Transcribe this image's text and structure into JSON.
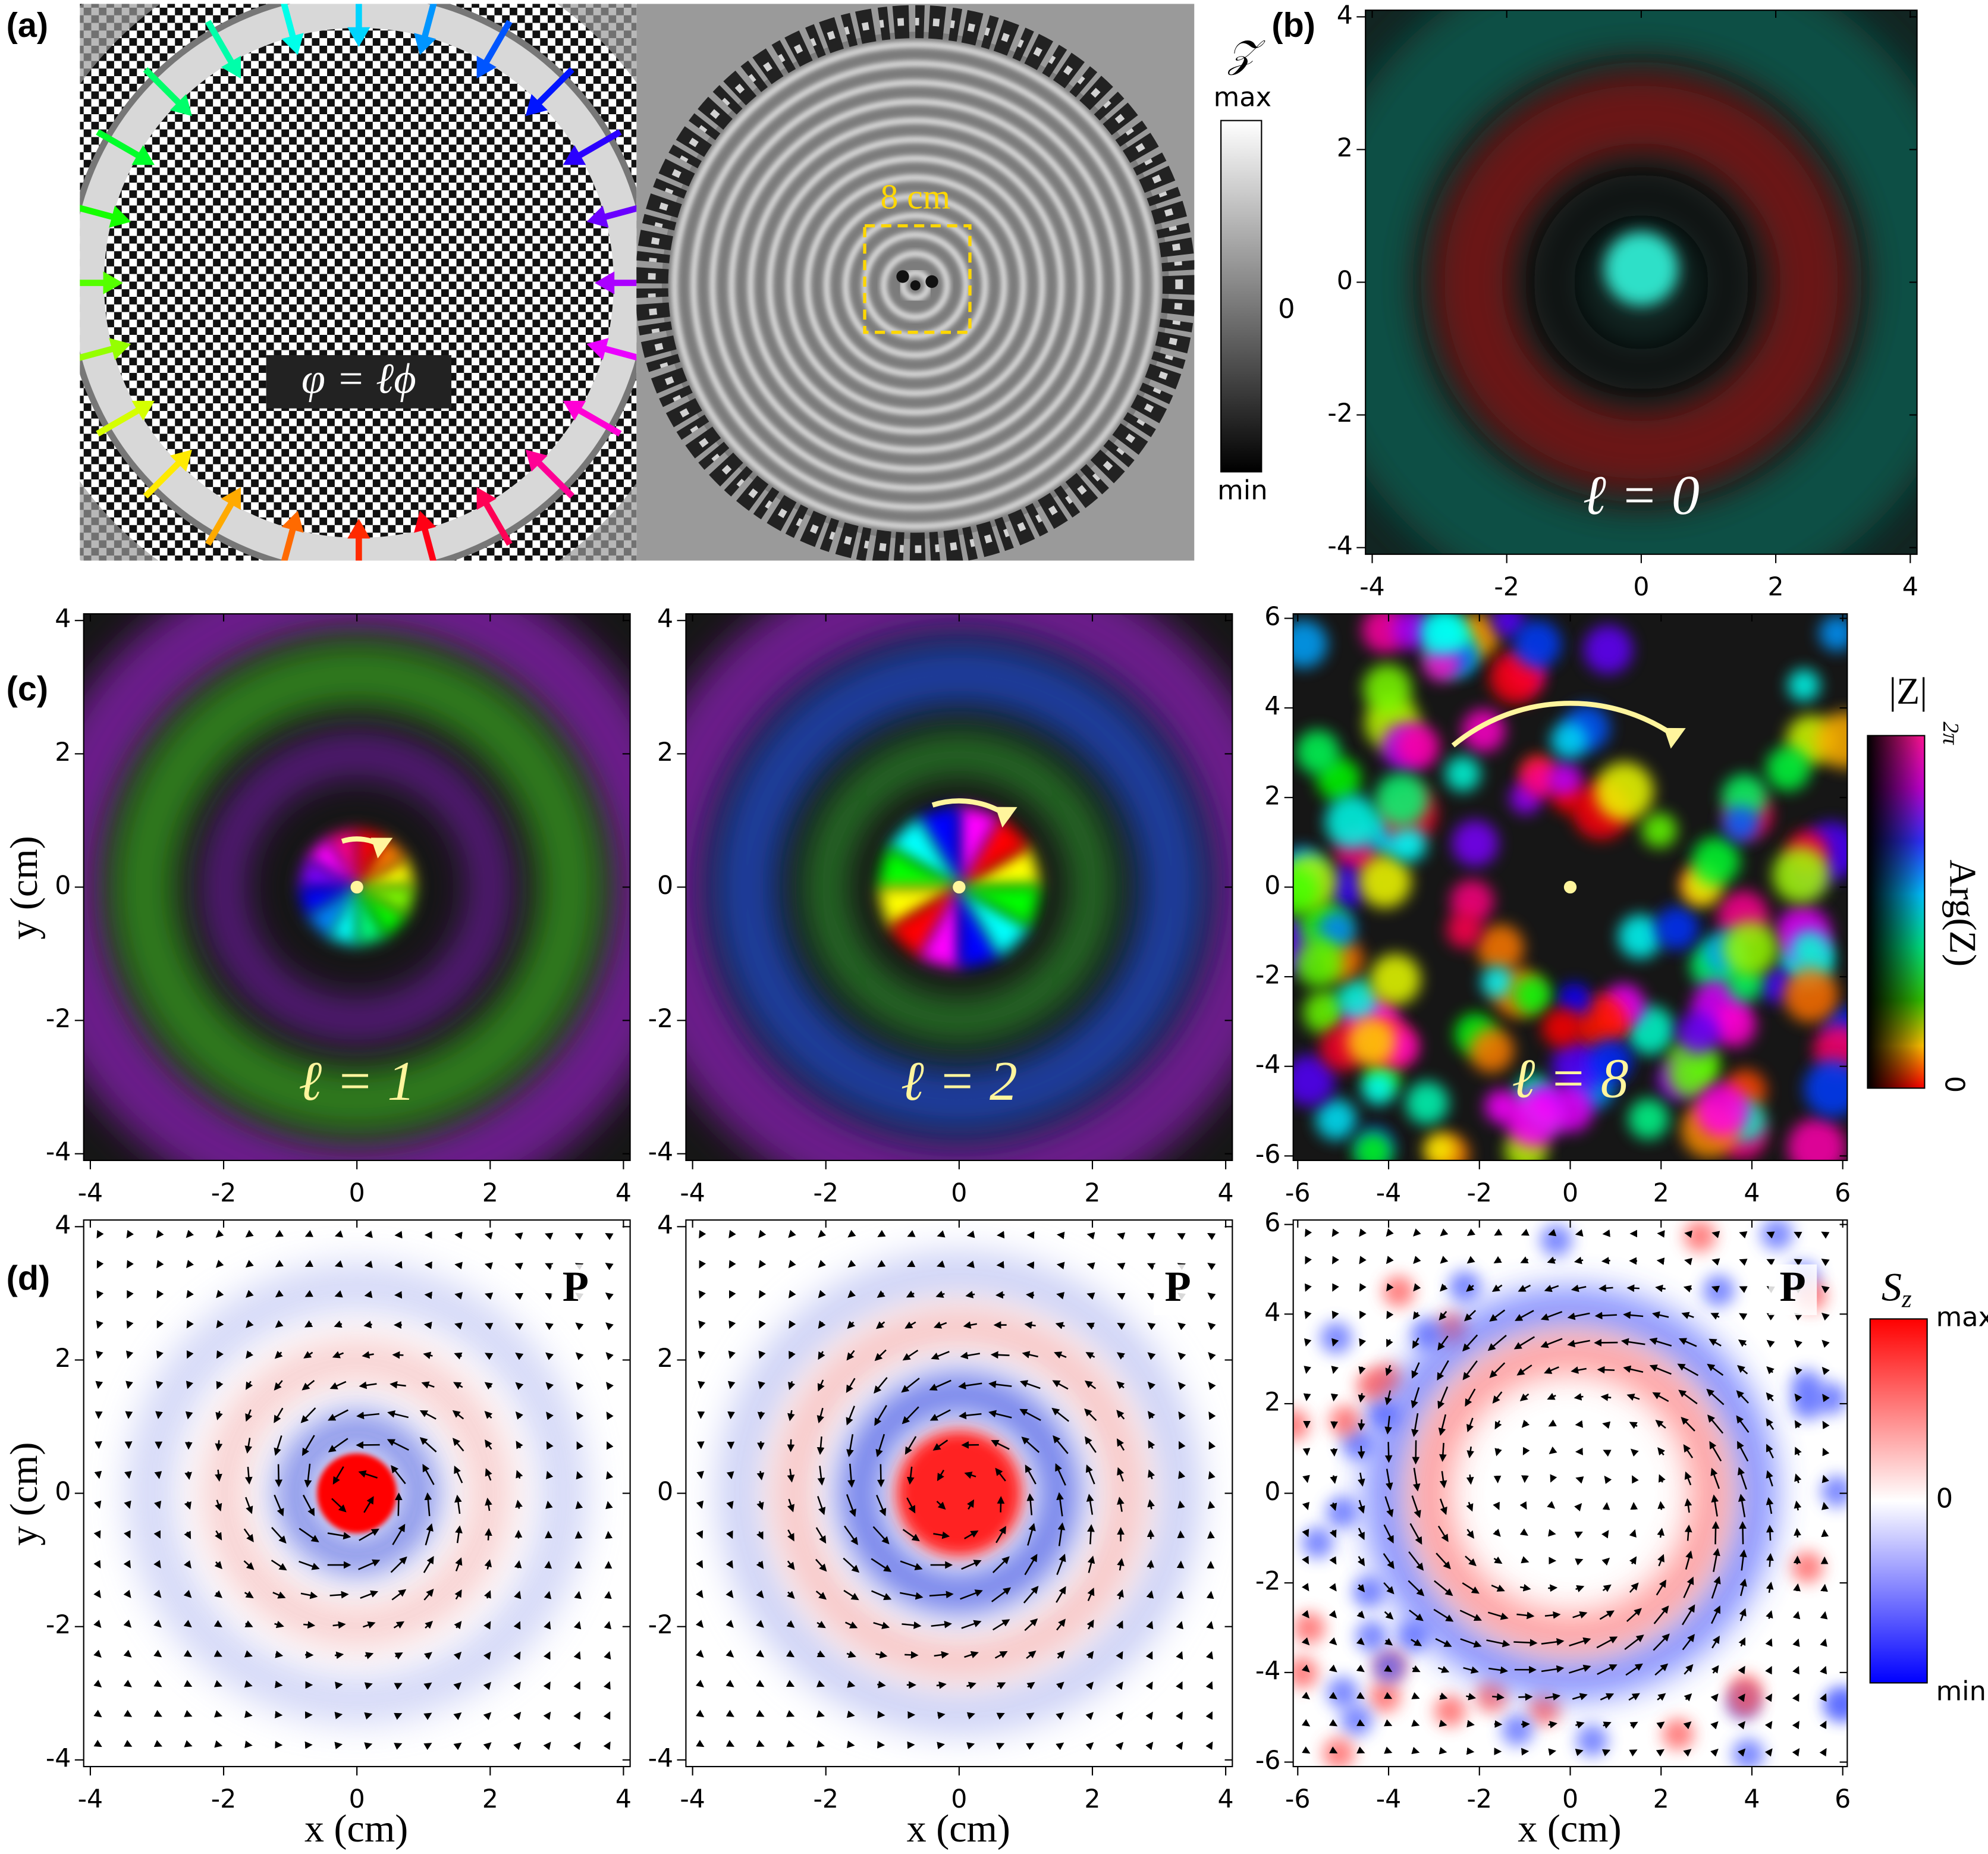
{
  "panels": {
    "a": {
      "label": "(a)",
      "formula": "φ = ℓϕ",
      "scale_bar": "8 cm",
      "colorbar": {
        "title": "𝒵",
        "max": "max",
        "zero": 0,
        "min": "min"
      }
    },
    "b": {
      "label": "(b)",
      "annotation": "ℓ = 0",
      "xlim": [
        -4.1,
        4.1
      ],
      "ylim": [
        -4.1,
        4.1
      ],
      "xticks": [
        -4,
        -2,
        0,
        2,
        4
      ],
      "yticks": [
        -4,
        -2,
        0,
        2,
        4
      ]
    },
    "c": {
      "label": "(c)",
      "plots": [
        {
          "annotation": "ℓ = 1",
          "xlim": [
            -4.1,
            4.1
          ],
          "ylim": [
            -4.1,
            4.1
          ],
          "xticks": [
            -4,
            -2,
            0,
            2,
            4
          ],
          "yticks": [
            -4,
            -2,
            0,
            2,
            4
          ]
        },
        {
          "annotation": "ℓ = 2",
          "xlim": [
            -4.1,
            4.1
          ],
          "ylim": [
            -4.1,
            4.1
          ],
          "xticks": [
            -4,
            -2,
            0,
            2,
            4
          ],
          "yticks": [
            -4,
            -2,
            0,
            2,
            4
          ]
        },
        {
          "annotation": "ℓ = 8",
          "xlim": [
            -6.1,
            6.1
          ],
          "ylim": [
            -6.1,
            6.1
          ],
          "xticks": [
            -6,
            -4,
            -2,
            0,
            2,
            4,
            6
          ],
          "yticks": [
            -6,
            -4,
            -2,
            0,
            2,
            4,
            6
          ]
        }
      ],
      "colorbar": {
        "title": "|Z|",
        "top": "2π",
        "axis_label": "Arg(Z)",
        "bottom": 0
      }
    },
    "d": {
      "label": "(d)",
      "plots": [
        {
          "marker": "P",
          "xlim": [
            -4.1,
            4.1
          ],
          "ylim": [
            -4.1,
            4.1
          ],
          "xticks": [
            -4,
            -2,
            0,
            2,
            4
          ],
          "yticks": [
            -4,
            -2,
            0,
            2,
            4
          ]
        },
        {
          "marker": "P",
          "xlim": [
            -4.1,
            4.1
          ],
          "ylim": [
            -4.1,
            4.1
          ],
          "xticks": [
            -4,
            -2,
            0,
            2,
            4
          ],
          "yticks": [
            -4,
            -2,
            0,
            2,
            4
          ]
        },
        {
          "marker": "P",
          "xlim": [
            -6.1,
            6.1
          ],
          "ylim": [
            -6.1,
            6.1
          ],
          "xticks": [
            -6,
            -4,
            -2,
            0,
            2,
            4,
            6
          ],
          "yticks": [
            -6,
            -4,
            -2,
            0,
            2,
            4,
            6
          ]
        }
      ],
      "colorbar": {
        "symbol": "S",
        "subscript": "z",
        "max": "max",
        "zero": 0,
        "min": "min"
      }
    }
  },
  "axis_labels": {
    "x": "x (cm)",
    "y": "y (cm)"
  }
}
